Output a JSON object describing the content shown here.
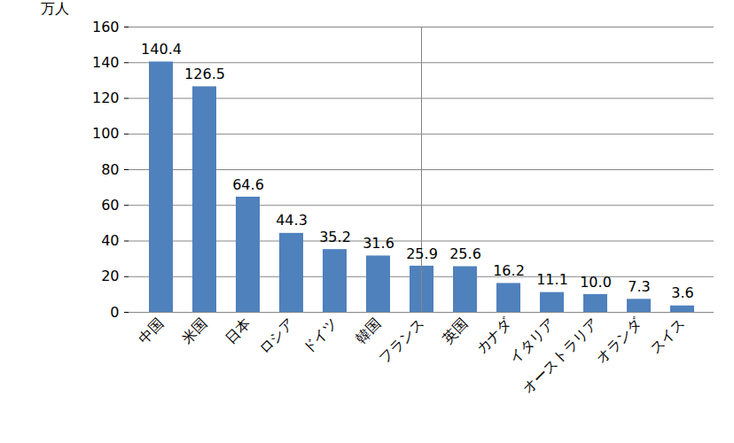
{
  "chart_data": {
    "type": "bar",
    "ylabel": "万人",
    "categories": [
      "中国",
      "米国",
      "日本",
      "ロシア",
      "ドイツ",
      "韓国",
      "フランス",
      "英国",
      "カナダ",
      "イタリア",
      "オーストラリア",
      "オランダ",
      "スイス"
    ],
    "values": [
      140.4,
      126.5,
      64.6,
      44.3,
      35.2,
      31.6,
      25.9,
      25.6,
      16.2,
      11.1,
      10.0,
      7.3,
      3.6
    ],
    "value_labels": [
      "140.4",
      "126.5",
      "64.6",
      "44.3",
      "35.2",
      "31.6",
      "25.9",
      "25.6",
      "16.2",
      "11.1",
      "10.0",
      "7.3",
      "3.6"
    ],
    "color": "#4f81bd",
    "ylim": [
      0,
      160
    ],
    "yticks": [
      0,
      20,
      40,
      60,
      80,
      100,
      120,
      140,
      160
    ],
    "grid": true,
    "data_labels": true
  }
}
